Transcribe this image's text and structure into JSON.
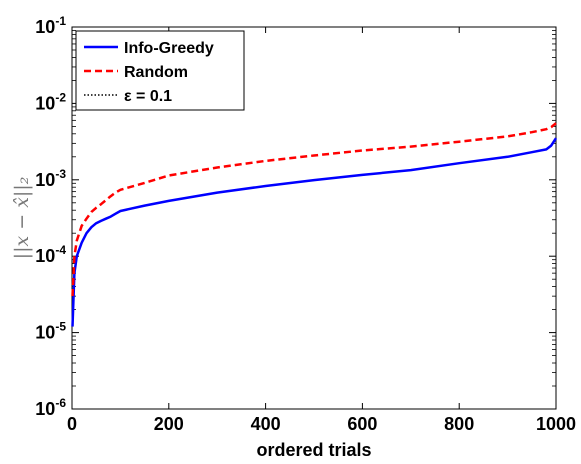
{
  "chart_data": {
    "type": "line",
    "title": "",
    "xlabel": "ordered trials",
    "ylabel": "||x − x̂||₂",
    "xlim": [
      0,
      1000
    ],
    "ylim": [
      1e-06,
      0.1
    ],
    "yscale": "log",
    "grid": false,
    "legend_position": "top-left",
    "x_ticks": [
      0,
      200,
      400,
      600,
      800,
      1000
    ],
    "x_tick_labels": [
      "0",
      "200",
      "400",
      "600",
      "800",
      "1000"
    ],
    "y_ticks": [
      1e-06,
      1e-05,
      0.0001,
      0.001,
      0.01,
      0.1
    ],
    "y_tick_labels": [
      {
        "base": "10",
        "exp": "-6"
      },
      {
        "base": "10",
        "exp": "-5"
      },
      {
        "base": "10",
        "exp": "-4"
      },
      {
        "base": "10",
        "exp": "-3"
      },
      {
        "base": "10",
        "exp": "-2"
      },
      {
        "base": "10",
        "exp": "-1"
      }
    ],
    "series": [
      {
        "name": "Info-Greedy",
        "color": "#0000ff",
        "style": "solid",
        "x": [
          1,
          5,
          10,
          20,
          30,
          40,
          50,
          60,
          70,
          80,
          90,
          100,
          150,
          200,
          300,
          400,
          500,
          600,
          700,
          800,
          900,
          950,
          980,
          990,
          1000
        ],
        "y": [
          1.2e-05,
          6e-05,
          0.0001,
          0.00015,
          0.0002,
          0.00024,
          0.00027,
          0.00029,
          0.00031,
          0.00033,
          0.00036,
          0.00039,
          0.00046,
          0.00053,
          0.00068,
          0.00083,
          0.00099,
          0.00116,
          0.00134,
          0.00165,
          0.002,
          0.0023,
          0.0025,
          0.0028,
          0.0035
        ]
      },
      {
        "name": "Random",
        "color": "#ff0000",
        "style": "dashed",
        "x": [
          1,
          5,
          10,
          20,
          30,
          40,
          50,
          60,
          70,
          80,
          90,
          100,
          150,
          200,
          300,
          400,
          500,
          600,
          700,
          800,
          900,
          950,
          980,
          990,
          1000
        ],
        "y": [
          3e-05,
          0.0001,
          0.00016,
          0.00025,
          0.00031,
          0.00038,
          0.00043,
          0.00048,
          0.00054,
          0.00061,
          0.00068,
          0.00074,
          0.00091,
          0.00114,
          0.00145,
          0.00177,
          0.00208,
          0.00242,
          0.00272,
          0.00315,
          0.0037,
          0.0042,
          0.0046,
          0.0049,
          0.0055
        ]
      },
      {
        "name": "ε = 0.1",
        "color": "#000000",
        "style": "dotted",
        "x": [],
        "y": []
      }
    ]
  }
}
